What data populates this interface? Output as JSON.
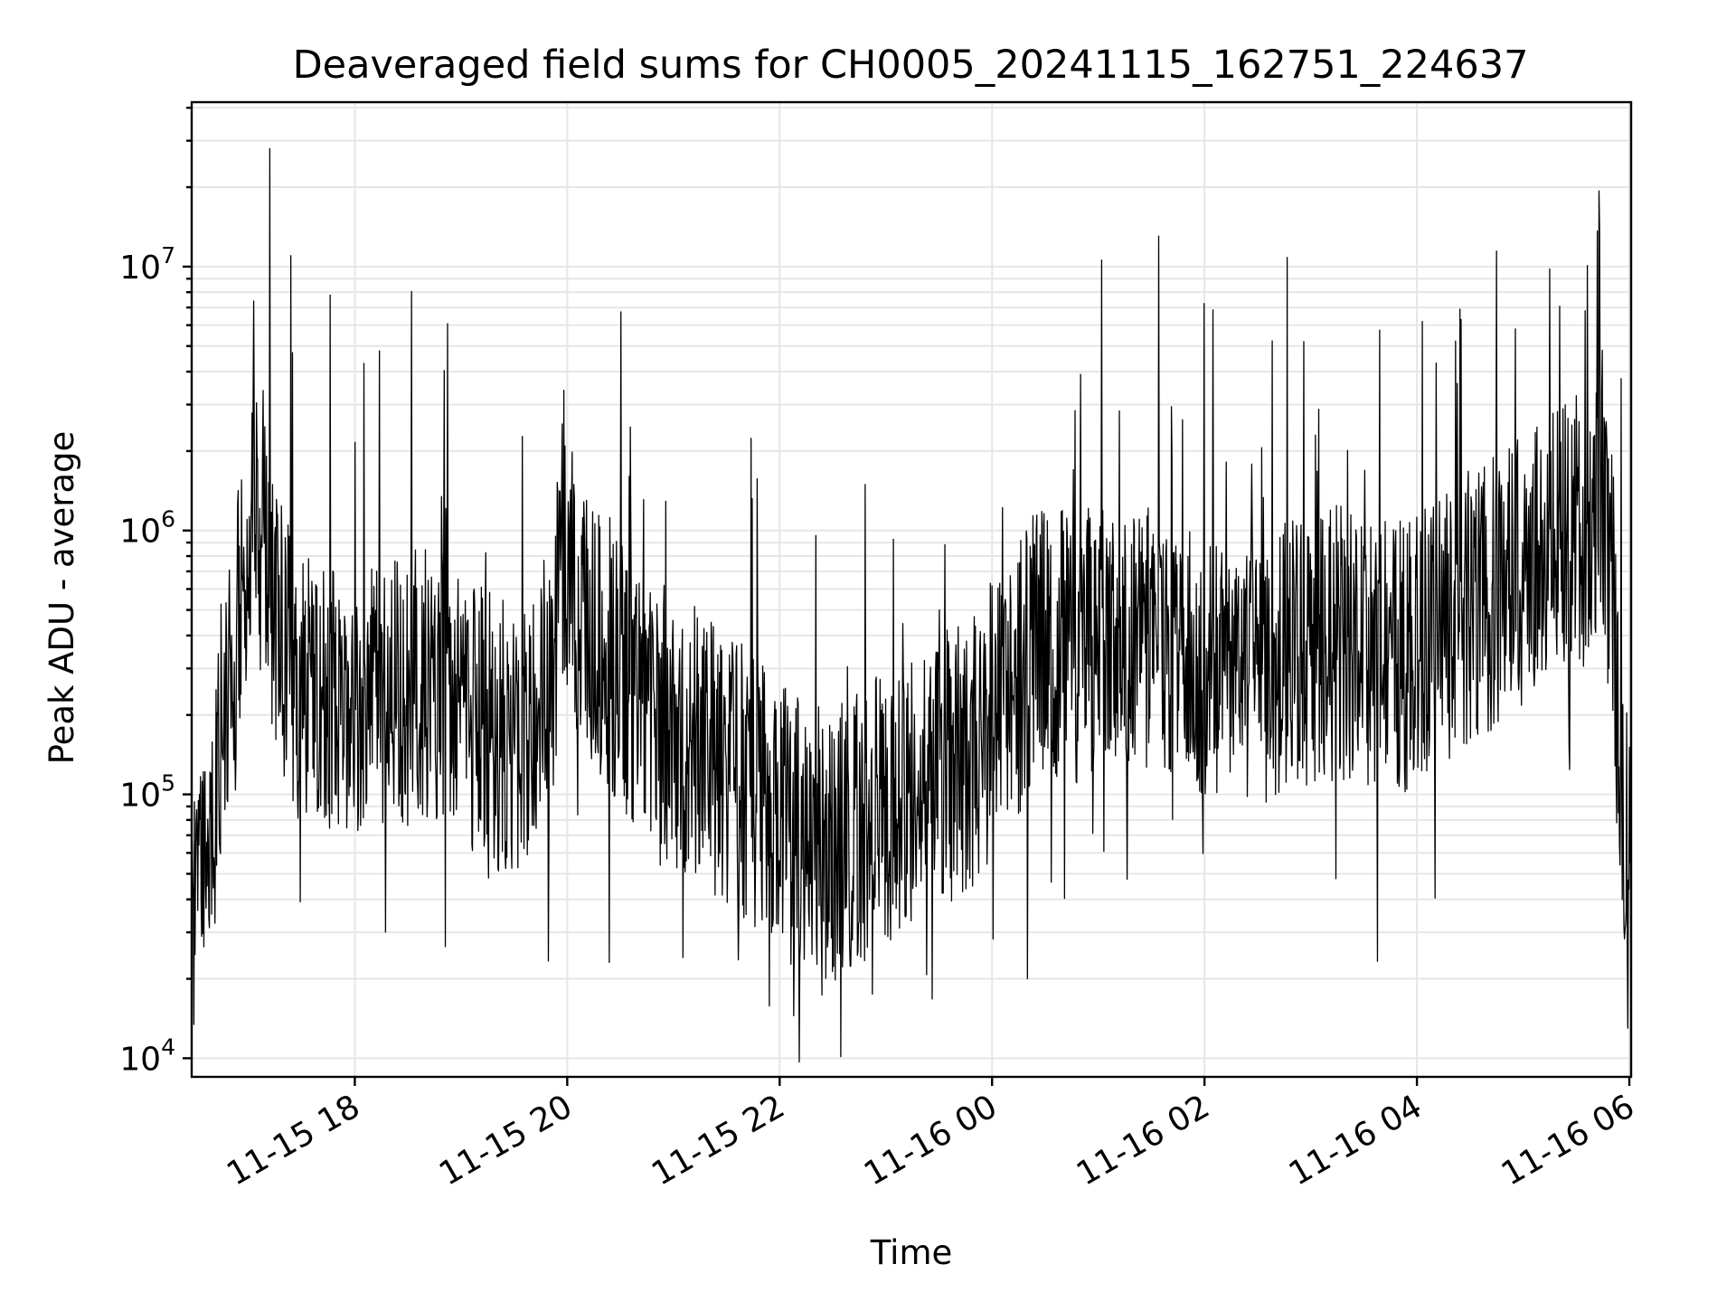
{
  "chart_data": {
    "type": "line",
    "title": "Deaveraged field sums for CH0005_20241115_162751_224637",
    "xlabel": "Time",
    "ylabel": "Peak ADU - average",
    "y_scale": "log",
    "ylim": [
      8500,
      42000000
    ],
    "xlim": [
      "2024-11-15T16:27:51",
      "2024-11-16T06:01:00"
    ],
    "grid": true,
    "legend": "none",
    "line_color": "#000000",
    "x_ticks": [
      {
        "value": "2024-11-15T18:00:00",
        "label": "11-15 18"
      },
      {
        "value": "2024-11-15T20:00:00",
        "label": "11-15 20"
      },
      {
        "value": "2024-11-15T22:00:00",
        "label": "11-15 22"
      },
      {
        "value": "2024-11-16T00:00:00",
        "label": "11-16 00"
      },
      {
        "value": "2024-11-16T02:00:00",
        "label": "11-16 02"
      },
      {
        "value": "2024-11-16T04:00:00",
        "label": "11-16 04"
      },
      {
        "value": "2024-11-16T06:00:00",
        "label": "11-16 06"
      }
    ],
    "y_ticks": [
      {
        "value": 10000,
        "base": "10",
        "exp": "4"
      },
      {
        "value": 100000,
        "base": "10",
        "exp": "5"
      },
      {
        "value": 1000000,
        "base": "10",
        "exp": "6"
      },
      {
        "value": 10000000,
        "base": "10",
        "exp": "7"
      }
    ],
    "series": [
      {
        "name": "",
        "x": [
          "2024-11-15T16:27:51",
          "2024-11-15T16:35:00",
          "2024-11-15T16:42:00",
          "2024-11-15T16:50:00",
          "2024-11-15T16:58:00",
          "2024-11-15T17:05:00",
          "2024-11-15T17:10:00",
          "2024-11-15T17:15:00",
          "2024-11-15T17:20:00",
          "2024-11-15T17:25:00",
          "2024-11-15T17:30:00",
          "2024-11-15T17:40:00",
          "2024-11-15T17:50:00",
          "2024-11-15T18:05:00",
          "2024-11-15T18:20:00",
          "2024-11-15T18:35:00",
          "2024-11-15T18:50:00",
          "2024-11-15T19:05:00",
          "2024-11-15T19:20:00",
          "2024-11-15T19:35:00",
          "2024-11-15T19:50:00",
          "2024-11-15T19:57:00",
          "2024-11-15T20:10:00",
          "2024-11-15T20:30:00",
          "2024-11-15T20:50:00",
          "2024-11-15T21:10:00",
          "2024-11-15T21:30:00",
          "2024-11-15T21:50:00",
          "2024-11-15T22:10:00",
          "2024-11-15T22:30:00",
          "2024-11-15T22:50:00",
          "2024-11-15T23:10:00",
          "2024-11-15T23:30:00",
          "2024-11-15T23:50:00",
          "2024-11-16T00:10:00",
          "2024-11-16T00:30:00",
          "2024-11-16T00:50:00",
          "2024-11-16T01:10:00",
          "2024-11-16T01:30:00",
          "2024-11-16T01:50:00",
          "2024-11-16T02:10:00",
          "2024-11-16T02:30:00",
          "2024-11-16T02:50:00",
          "2024-11-16T03:10:00",
          "2024-11-16T03:30:00",
          "2024-11-16T03:50:00",
          "2024-11-16T04:10:00",
          "2024-11-16T04:30:00",
          "2024-11-16T04:50:00",
          "2024-11-16T05:10:00",
          "2024-11-16T05:30:00",
          "2024-11-16T05:45:00",
          "2024-11-16T05:50:00",
          "2024-11-16T05:55:00",
          "2024-11-16T06:01:00"
        ],
        "y": [
          40000,
          55000,
          120000,
          350000,
          700000,
          1400000,
          900000,
          500000,
          350000,
          300000,
          250000,
          230000,
          220000,
          230000,
          240000,
          260000,
          260000,
          200000,
          170000,
          150000,
          220000,
          900000,
          450000,
          300000,
          200000,
          160000,
          130000,
          95000,
          70000,
          65000,
          80000,
          100000,
          120000,
          150000,
          250000,
          400000,
          350000,
          450000,
          420000,
          320000,
          280000,
          300000,
          350000,
          380000,
          350000,
          330000,
          400000,
          500000,
          650000,
          800000,
          1000000,
          1100000,
          700000,
          120000,
          40000
        ]
      }
    ],
    "annotation": "High-frequency noisy series; sharp spikes at 2024-11-15T17:12 (2.8e7), 2024-11-15T17:24 (1.1e7), 2024-11-16T05:15 (9.8e6), dips to ~1.3e4 near 2024-11-16T05:59."
  }
}
